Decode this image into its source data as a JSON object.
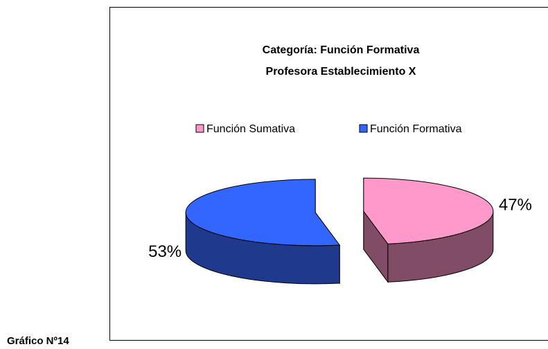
{
  "caption": "Gráfico Nº14",
  "chart_data": {
    "type": "pie",
    "title": [
      "Categoría: Función Formativa",
      "Profesora Establecimiento X"
    ],
    "categories": [
      "Función Sumativa",
      "Función Formativa"
    ],
    "values": [
      47,
      53
    ],
    "value_labels": [
      "47%",
      "53%"
    ],
    "colors": [
      "#ff99cc",
      "#3366ff"
    ],
    "side_colors": [
      "#804c66",
      "#1f3a8c"
    ]
  }
}
